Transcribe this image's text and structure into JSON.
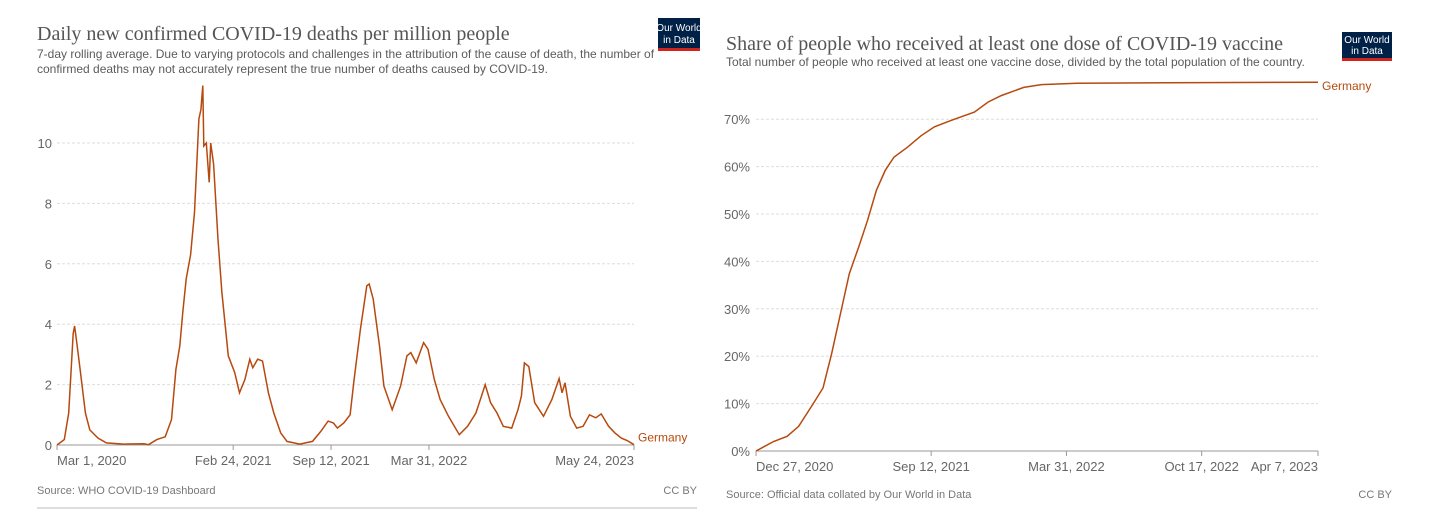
{
  "colors": {
    "series": "#b7490e",
    "logo_bg": "#002147",
    "logo_bar": "#ce261e"
  },
  "logo": {
    "line1": "Our World",
    "line2": "in Data"
  },
  "chart_data": [
    {
      "type": "line",
      "title": "Daily new confirmed COVID-19 deaths per million people",
      "subtitle": [
        "7-day rolling average. Due to varying protocols and challenges in the attribution of the cause of death, the number of",
        "confirmed deaths may not accurately represent the true number of deaths caused by COVID-19."
      ],
      "x_unit": "days since Mar 1, 2020",
      "xlim": [
        0,
        1179
      ],
      "ylim": [
        0,
        11.9
      ],
      "yticks": [
        {
          "v": 0,
          "label": "0"
        },
        {
          "v": 2,
          "label": "2"
        },
        {
          "v": 4,
          "label": "4"
        },
        {
          "v": 6,
          "label": "6"
        },
        {
          "v": 8,
          "label": "8"
        },
        {
          "v": 10,
          "label": "10"
        }
      ],
      "xticks": [
        {
          "v": 0,
          "label": "Mar 1, 2020"
        },
        {
          "v": 360,
          "label": "Feb 24, 2021"
        },
        {
          "v": 560,
          "label": "Sep 12, 2021"
        },
        {
          "v": 760,
          "label": "Mar 31, 2022"
        },
        {
          "v": 1179,
          "label": "May 24, 2023"
        }
      ],
      "grid": true,
      "series": [
        {
          "name": "Germany",
          "points": [
            [
              0,
              0
            ],
            [
              15,
              0.18
            ],
            [
              24,
              1.06
            ],
            [
              33,
              3.7
            ],
            [
              36,
              3.94
            ],
            [
              41,
              3.3
            ],
            [
              48,
              2.4
            ],
            [
              58,
              1.06
            ],
            [
              67,
              0.5
            ],
            [
              84,
              0.23
            ],
            [
              101,
              0.07
            ],
            [
              136,
              0.03
            ],
            [
              178,
              0.04
            ],
            [
              187,
              0.01
            ],
            [
              204,
              0.18
            ],
            [
              221,
              0.27
            ],
            [
              234,
              0.84
            ],
            [
              243,
              2.5
            ],
            [
              251,
              3.28
            ],
            [
              257,
              4.4
            ],
            [
              264,
              5.5
            ],
            [
              273,
              6.3
            ],
            [
              281,
              7.7
            ],
            [
              290,
              10.8
            ],
            [
              294,
              11.1
            ],
            [
              298,
              11.9
            ],
            [
              300,
              9.9
            ],
            [
              305,
              10.0
            ],
            [
              311,
              8.7
            ],
            [
              314,
              10.0
            ],
            [
              320,
              9.3
            ],
            [
              329,
              6.8
            ],
            [
              337,
              5.05
            ],
            [
              350,
              2.95
            ],
            [
              363,
              2.4
            ],
            [
              373,
              1.73
            ],
            [
              384,
              2.17
            ],
            [
              394,
              2.84
            ],
            [
              400,
              2.56
            ],
            [
              410,
              2.84
            ],
            [
              420,
              2.78
            ],
            [
              432,
              1.73
            ],
            [
              443,
              1.06
            ],
            [
              457,
              0.4
            ],
            [
              470,
              0.12
            ],
            [
              496,
              0.03
            ],
            [
              522,
              0.12
            ],
            [
              539,
              0.45
            ],
            [
              554,
              0.79
            ],
            [
              565,
              0.73
            ],
            [
              573,
              0.56
            ],
            [
              586,
              0.73
            ],
            [
              599,
              1.0
            ],
            [
              607,
              2.17
            ],
            [
              620,
              3.83
            ],
            [
              633,
              5.27
            ],
            [
              638,
              5.33
            ],
            [
              646,
              4.83
            ],
            [
              659,
              3.28
            ],
            [
              668,
              1.95
            ],
            [
              685,
              1.17
            ],
            [
              702,
              1.95
            ],
            [
              715,
              2.95
            ],
            [
              723,
              3.06
            ],
            [
              734,
              2.72
            ],
            [
              749,
              3.39
            ],
            [
              758,
              3.17
            ],
            [
              771,
              2.17
            ],
            [
              783,
              1.5
            ],
            [
              800,
              0.95
            ],
            [
              822,
              0.34
            ],
            [
              839,
              0.62
            ],
            [
              856,
              1.06
            ],
            [
              865,
              1.5
            ],
            [
              875,
              2.0
            ],
            [
              886,
              1.4
            ],
            [
              899,
              1.06
            ],
            [
              912,
              0.62
            ],
            [
              929,
              0.56
            ],
            [
              942,
              1.17
            ],
            [
              949,
              1.62
            ],
            [
              955,
              2.72
            ],
            [
              964,
              2.6
            ],
            [
              976,
              1.4
            ],
            [
              994,
              0.95
            ],
            [
              1011,
              1.5
            ],
            [
              1026,
              2.2
            ],
            [
              1032,
              1.73
            ],
            [
              1038,
              2.06
            ],
            [
              1049,
              0.95
            ],
            [
              1062,
              0.56
            ],
            [
              1075,
              0.62
            ],
            [
              1088,
              1.0
            ],
            [
              1101,
              0.9
            ],
            [
              1112,
              1.03
            ],
            [
              1127,
              0.62
            ],
            [
              1140,
              0.4
            ],
            [
              1153,
              0.23
            ],
            [
              1165,
              0.15
            ],
            [
              1179,
              0.01
            ]
          ]
        }
      ],
      "source": "Source: WHO COVID-19 Dashboard",
      "license": "CC BY"
    },
    {
      "type": "line",
      "title": "Share of people who received at least one dose of COVID-19 vaccine",
      "subtitle": [
        "Total number of people who received at least one vaccine dose, divided by the total population of the country."
      ],
      "x_unit": "days since Dec 27, 2020",
      "xlim": [
        0,
        831
      ],
      "ylim": [
        0,
        77.8
      ],
      "yticks": [
        {
          "v": 0,
          "label": "0%"
        },
        {
          "v": 10,
          "label": "10%"
        },
        {
          "v": 20,
          "label": "20%"
        },
        {
          "v": 30,
          "label": "30%"
        },
        {
          "v": 40,
          "label": "40%"
        },
        {
          "v": 50,
          "label": "50%"
        },
        {
          "v": 60,
          "label": "60%"
        },
        {
          "v": 70,
          "label": "70%"
        }
      ],
      "xticks": [
        {
          "v": 0,
          "label": "Dec 27, 2020"
        },
        {
          "v": 259,
          "label": "Sep 12, 2021"
        },
        {
          "v": 459,
          "label": "Mar 31, 2022"
        },
        {
          "v": 659,
          "label": "Oct 17, 2022"
        },
        {
          "v": 831,
          "label": "Apr 7, 2023"
        }
      ],
      "grid": true,
      "series": [
        {
          "name": "Germany",
          "points": [
            [
              0,
              0
            ],
            [
              26,
              2.0
            ],
            [
              46,
              3.1
            ],
            [
              63,
              5.2
            ],
            [
              82,
              9.4
            ],
            [
              99,
              13.3
            ],
            [
              112,
              20.6
            ],
            [
              125,
              29.0
            ],
            [
              138,
              37.4
            ],
            [
              152,
              43.1
            ],
            [
              165,
              48.7
            ],
            [
              178,
              55.0
            ],
            [
              191,
              59.2
            ],
            [
              204,
              62.0
            ],
            [
              224,
              64.1
            ],
            [
              244,
              66.5
            ],
            [
              264,
              68.4
            ],
            [
              290,
              69.8
            ],
            [
              323,
              71.5
            ],
            [
              343,
              73.6
            ],
            [
              363,
              75.0
            ],
            [
              396,
              76.7
            ],
            [
              422,
              77.3
            ],
            [
              475,
              77.6
            ],
            [
              607,
              77.7
            ],
            [
              831,
              77.8
            ]
          ]
        }
      ],
      "source": "Source: Official data collated by Our World in Data",
      "license": "CC BY"
    }
  ]
}
